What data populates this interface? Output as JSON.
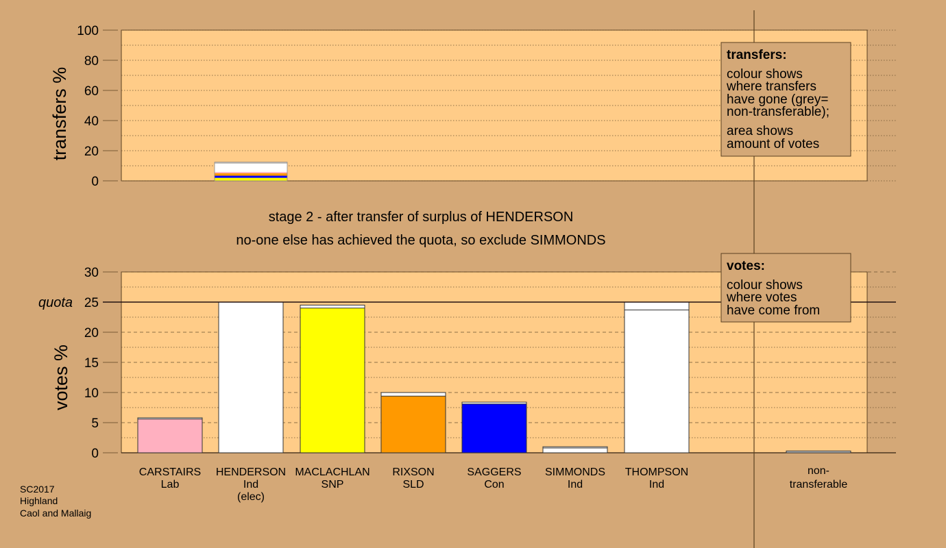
{
  "stage_title": "stage 2 - after transfer of surplus of HENDERSON",
  "stage_note": "no-one else has achieved the quota, so exclude SIMMONDS",
  "transfers_legend": {
    "title": "transfers:",
    "lines_a": [
      "colour shows",
      "where transfers",
      "have gone (grey=",
      "non-transferable);"
    ],
    "lines_b": [
      "area shows",
      "amount of votes"
    ]
  },
  "votes_legend": {
    "title": "votes:",
    "lines": [
      "colour shows",
      "where votes",
      "have come from"
    ]
  },
  "footer": [
    "SC2017",
    "Highland",
    "Caol and Mallaig"
  ],
  "colors": {
    "background": "#d4a877",
    "plot_bg": "#ffcc88",
    "Lab": "#ffb0c0",
    "Ind": "#ffffff",
    "SNP": "#ffff00",
    "SLD": "#ff9900",
    "Con": "#0000ff",
    "nontransferable": "#c0c0c0"
  },
  "chart_data": [
    {
      "type": "bar",
      "name": "transfers",
      "ylabel": "transfers %",
      "ylim": [
        0,
        100
      ],
      "yticks": [
        0,
        20,
        40,
        60,
        80,
        100
      ],
      "grid": "dotted every 10",
      "transfer_from": "HENDERSON",
      "segments": [
        {
          "to": "MACLACHLAN",
          "party": "SNP",
          "value": 2.0
        },
        {
          "to": "SAGGERS",
          "party": "Con",
          "value": 1.4
        },
        {
          "to": "RIXSON",
          "party": "SLD",
          "value": 1.6
        },
        {
          "to": "CARSTAIRS",
          "party": "Lab",
          "value": 0.8
        },
        {
          "to": "SIMMONDS",
          "party": "Ind",
          "value": 0.6
        },
        {
          "to": "THOMPSON",
          "party": "Ind",
          "value": 5.0
        },
        {
          "to": "non-transferable",
          "party": "nontransferable",
          "value": 1.0
        }
      ]
    },
    {
      "type": "bar",
      "name": "votes",
      "ylabel": "votes %",
      "ylim": [
        0,
        30
      ],
      "yticks": [
        0,
        5,
        10,
        15,
        20,
        25,
        30
      ],
      "quota": 25,
      "quota_label": "quota",
      "grid": "dashed every 2.5",
      "candidates": [
        {
          "name": "CARSTAIRS",
          "party": "Lab",
          "extra": "",
          "first": 5.6,
          "transfer": 0.2
        },
        {
          "name": "HENDERSON",
          "party": "Ind",
          "extra": "(elec)",
          "first": 25.0,
          "transfer": 0
        },
        {
          "name": "MACLACHLAN",
          "party": "SNP",
          "extra": "",
          "first": 24.0,
          "transfer": 0.5
        },
        {
          "name": "RIXSON",
          "party": "SLD",
          "extra": "",
          "first": 9.4,
          "transfer": 0.6
        },
        {
          "name": "SAGGERS",
          "party": "Con",
          "extra": "",
          "first": 8.1,
          "transfer": 0.3
        },
        {
          "name": "SIMMONDS",
          "party": "Ind",
          "extra": "",
          "first": 0.8,
          "transfer": 0.2
        },
        {
          "name": "THOMPSON",
          "party": "Ind",
          "extra": "",
          "first": 23.7,
          "transfer": 1.3
        }
      ],
      "nontransferable": {
        "label_1": "non-",
        "label_2": "transferable",
        "value": 0.3
      }
    }
  ]
}
